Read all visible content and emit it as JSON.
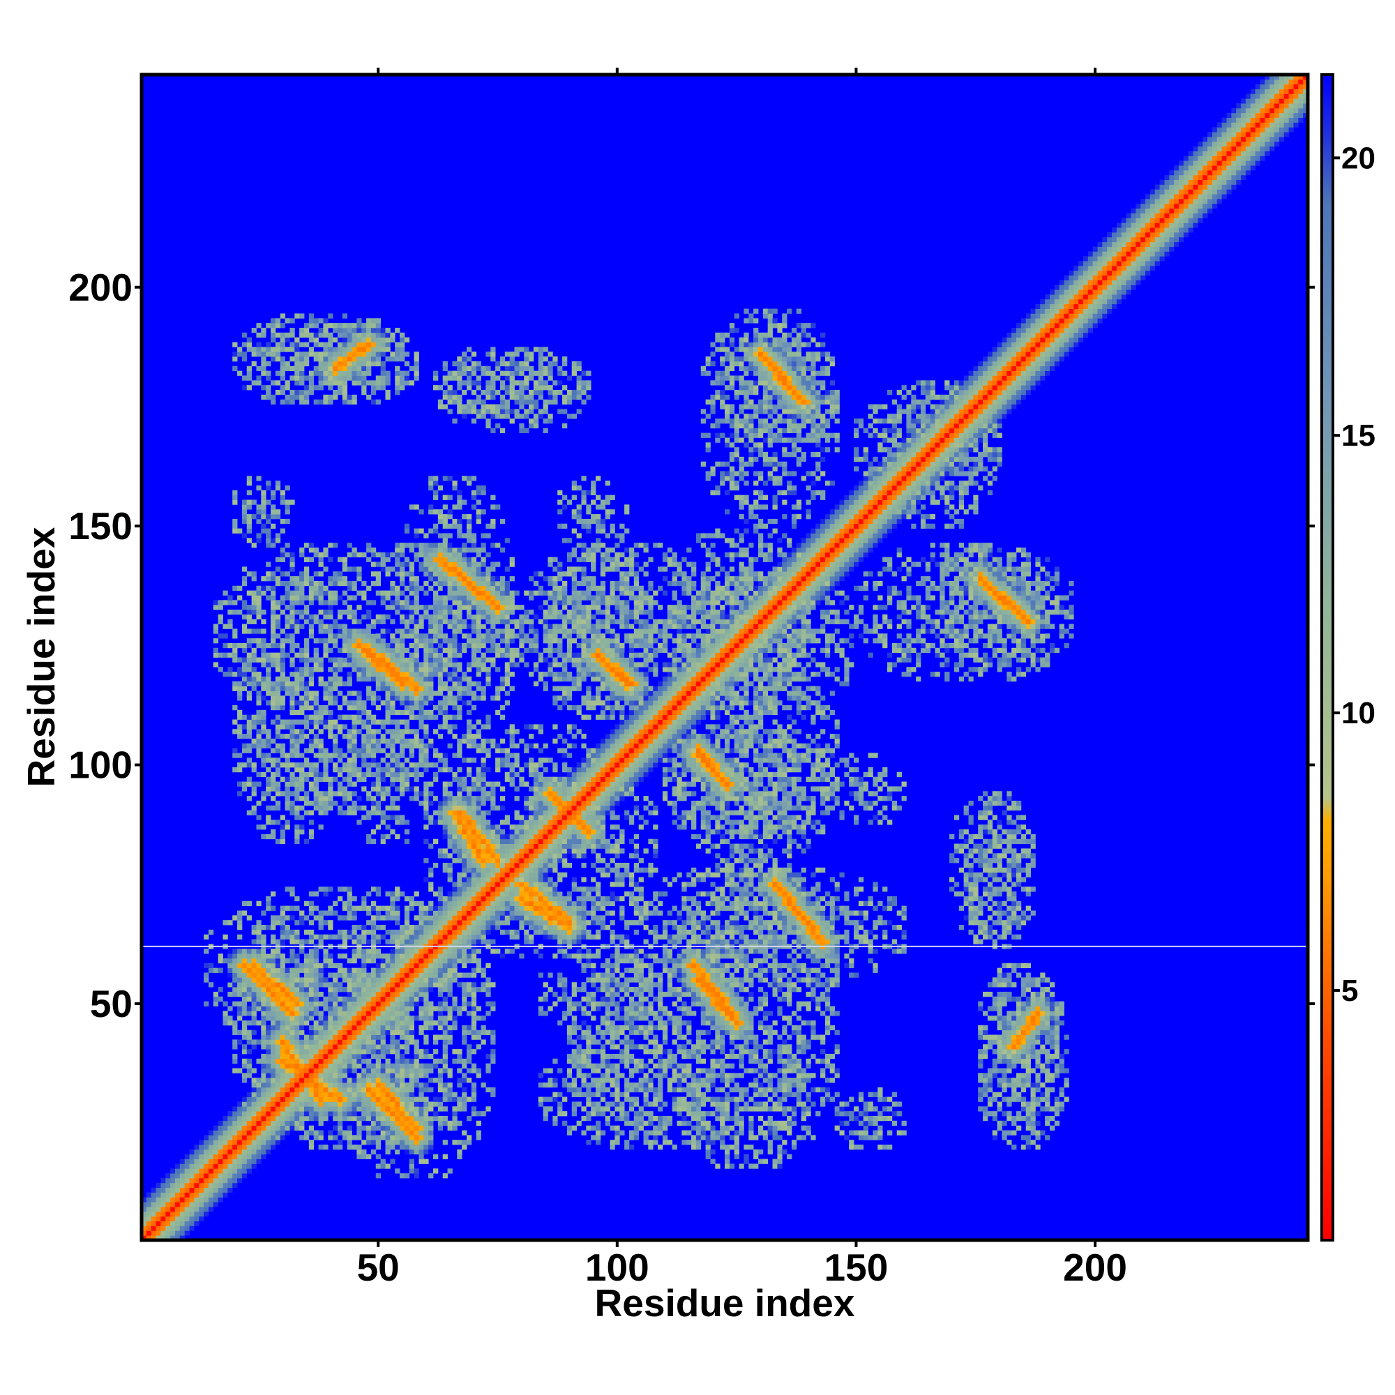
{
  "chart_data": {
    "type": "heatmap",
    "title": "",
    "xlabel": "Residue index",
    "ylabel": "Residue index",
    "xlim": [
      1,
      244
    ],
    "ylim": [
      1,
      244
    ],
    "x_ticks": [
      50,
      100,
      150,
      200
    ],
    "y_ticks": [
      50,
      100,
      150,
      200
    ],
    "colorbar": {
      "ticks": [
        5,
        10,
        15,
        20
      ],
      "range": [
        0.5,
        21.5
      ],
      "colors": [
        {
          "value": 0.5,
          "color": "#ff0000"
        },
        {
          "value": 4,
          "color": "#ff4a00"
        },
        {
          "value": 7,
          "color": "#ff8c00"
        },
        {
          "value": 8.5,
          "color": "#ffae00"
        },
        {
          "value": 9,
          "color": "#b5c48a"
        },
        {
          "value": 12,
          "color": "#8fb59a"
        },
        {
          "value": 16,
          "color": "#7095b8"
        },
        {
          "value": 19,
          "color": "#4d76b8"
        },
        {
          "value": 20.5,
          "color": "#0000ff"
        }
      ],
      "saturation_color": "#0000ff"
    },
    "matrix_symmetric": true,
    "background_value": 21,
    "diagonal_band": {
      "core_value": 1,
      "inner_value": 4.5,
      "outer_value": 12
    },
    "contact_segments": [
      {
        "i": [
          22,
          32
        ],
        "j": [
          58,
          48
        ],
        "value": 6
      },
      {
        "i": [
          30,
          42
        ],
        "j": [
          38,
          30
        ],
        "value": 6
      },
      {
        "i": [
          41,
          48
        ],
        "j": [
          183,
          188
        ],
        "value": 6
      },
      {
        "i": [
          48,
          58
        ],
        "j": [
          124,
          116
        ],
        "value": 6
      },
      {
        "i": [
          50,
          58
        ],
        "j": [
          33,
          24
        ],
        "value": 6
      },
      {
        "i": [
          63,
          75
        ],
        "j": [
          143,
          133
        ],
        "value": 6
      },
      {
        "i": [
          67,
          75
        ],
        "j": [
          90,
          80
        ],
        "value": 6
      },
      {
        "i": [
          80,
          90
        ],
        "j": [
          72,
          66
        ],
        "value": 6
      },
      {
        "i": [
          97,
          103
        ],
        "j": [
          122,
          117
        ],
        "value": 6
      },
      {
        "i": [
          117,
          125
        ],
        "j": [
          55,
          46
        ],
        "value": 6
      },
      {
        "i": [
          117,
          123
        ],
        "j": [
          102,
          96
        ],
        "value": 6
      },
      {
        "i": [
          130,
          138
        ],
        "j": [
          186,
          177
        ],
        "value": 6
      },
      {
        "i": [
          133,
          143
        ],
        "j": [
          75,
          63
        ],
        "value": 6
      },
      {
        "i": [
          176,
          185
        ],
        "j": [
          139,
          131
        ],
        "value": 6
      },
      {
        "i": [
          88,
          94
        ],
        "j": [
          92,
          86
        ],
        "value": 6
      }
    ],
    "noise_regions": [
      {
        "x": [
          22,
          58
        ],
        "y": [
          176,
          192
        ]
      },
      {
        "x": [
          62,
          94
        ],
        "y": [
          170,
          187
        ]
      },
      {
        "x": [
          122,
          145
        ],
        "y": [
          170,
          190
        ]
      },
      {
        "x": [
          150,
          180
        ],
        "y": [
          155,
          178
        ]
      },
      {
        "x": [
          16,
          80
        ],
        "y": [
          110,
          146
        ]
      },
      {
        "x": [
          80,
          120
        ],
        "y": [
          112,
          146
        ]
      },
      {
        "x": [
          110,
          150
        ],
        "y": [
          112,
          140
        ]
      },
      {
        "x": [
          150,
          195
        ],
        "y": [
          118,
          146
        ]
      },
      {
        "x": [
          22,
          60
        ],
        "y": [
          90,
          110
        ]
      },
      {
        "x": [
          64,
          100
        ],
        "y": [
          80,
          108
        ]
      },
      {
        "x": [
          110,
          144
        ],
        "y": [
          84,
          108
        ]
      },
      {
        "x": [
          145,
          160
        ],
        "y": [
          88,
          102
        ]
      },
      {
        "x": [
          173,
          186
        ],
        "y": [
          64,
          92
        ]
      },
      {
        "x": [
          14,
          70
        ],
        "y": [
          40,
          74
        ]
      },
      {
        "x": [
          70,
          100
        ],
        "y": [
          60,
          74
        ]
      },
      {
        "x": [
          100,
          160
        ],
        "y": [
          54,
          78
        ]
      },
      {
        "x": [
          84,
          120
        ],
        "y": [
          44,
          60
        ]
      },
      {
        "x": [
          24,
          64
        ],
        "y": [
          20,
          40
        ]
      },
      {
        "x": [
          84,
          140
        ],
        "y": [
          20,
          42
        ]
      },
      {
        "x": [
          176,
          194
        ],
        "y": [
          20,
          56
        ]
      },
      {
        "x": [
          145,
          160
        ],
        "y": [
          20,
          32
        ]
      }
    ],
    "missing_row": 62
  }
}
